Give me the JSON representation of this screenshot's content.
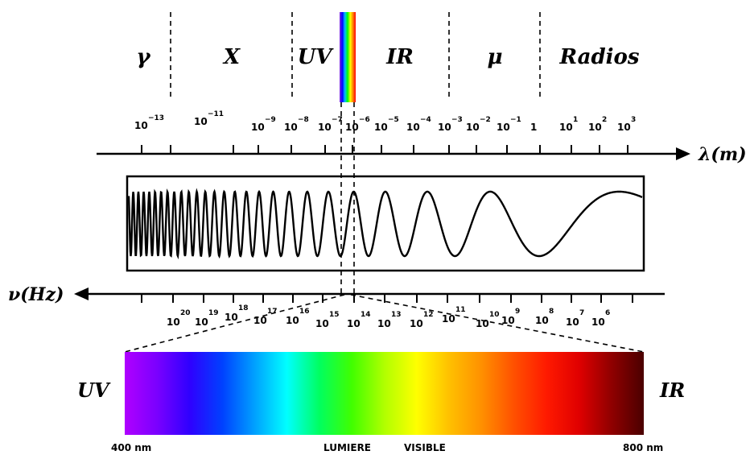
{
  "bands": [
    {
      "key": "gamma",
      "label": "γ"
    },
    {
      "key": "xray",
      "label": "X"
    },
    {
      "key": "uv",
      "label": "UV"
    },
    {
      "key": "ir",
      "label": "IR"
    },
    {
      "key": "micro",
      "label": "μ"
    },
    {
      "key": "radio",
      "label": "Radios"
    }
  ],
  "wavelength_axis": {
    "label": "λ(m)",
    "ticks": [
      {
        "base": "10",
        "exp": "−13"
      },
      {
        "base": "10",
        "exp": "−11"
      },
      {
        "base": "10",
        "exp": "−9"
      },
      {
        "base": "10",
        "exp": "−8"
      },
      {
        "base": "10",
        "exp": "−7"
      },
      {
        "base": "10",
        "exp": "−6"
      },
      {
        "base": "10",
        "exp": "−5"
      },
      {
        "base": "10",
        "exp": "−4"
      },
      {
        "base": "10",
        "exp": "−3"
      },
      {
        "base": "10",
        "exp": "−2"
      },
      {
        "base": "10",
        "exp": "−1"
      },
      {
        "base": "1",
        "exp": ""
      },
      {
        "base": "10",
        "exp": "1"
      },
      {
        "base": "10",
        "exp": "2"
      },
      {
        "base": "10",
        "exp": "3"
      }
    ]
  },
  "frequency_axis": {
    "label": "ν(Hz)",
    "ticks": [
      {
        "base": "10",
        "exp": "20"
      },
      {
        "base": "10",
        "exp": "19"
      },
      {
        "base": "10",
        "exp": "18"
      },
      {
        "base": "10",
        "exp": "17"
      },
      {
        "base": "10",
        "exp": "16"
      },
      {
        "base": "10",
        "exp": "15"
      },
      {
        "base": "10",
        "exp": "14"
      },
      {
        "base": "10",
        "exp": "13"
      },
      {
        "base": "10",
        "exp": "12"
      },
      {
        "base": "10",
        "exp": "11"
      },
      {
        "base": "10",
        "exp": "10"
      },
      {
        "base": "10",
        "exp": "9"
      },
      {
        "base": "10",
        "exp": "8"
      },
      {
        "base": "10",
        "exp": "7"
      },
      {
        "base": "10",
        "exp": "6"
      }
    ]
  },
  "visible": {
    "left_label": "UV",
    "right_label": "IR",
    "start_nm": "400 nm",
    "end_nm": "800 nm",
    "caption_word1": "LUMIERE",
    "caption_word2": "VISIBLE"
  },
  "colors": {
    "axis": "#000000",
    "spectrum": [
      "#b000ff",
      "#7a00ff",
      "#2f00ff",
      "#0040ff",
      "#00a0ff",
      "#00ffff",
      "#00ff60",
      "#40ff00",
      "#b0ff00",
      "#ffff00",
      "#ffc000",
      "#ff9000",
      "#ff5000",
      "#ff1a00",
      "#e00000",
      "#900000",
      "#4a0000"
    ]
  }
}
